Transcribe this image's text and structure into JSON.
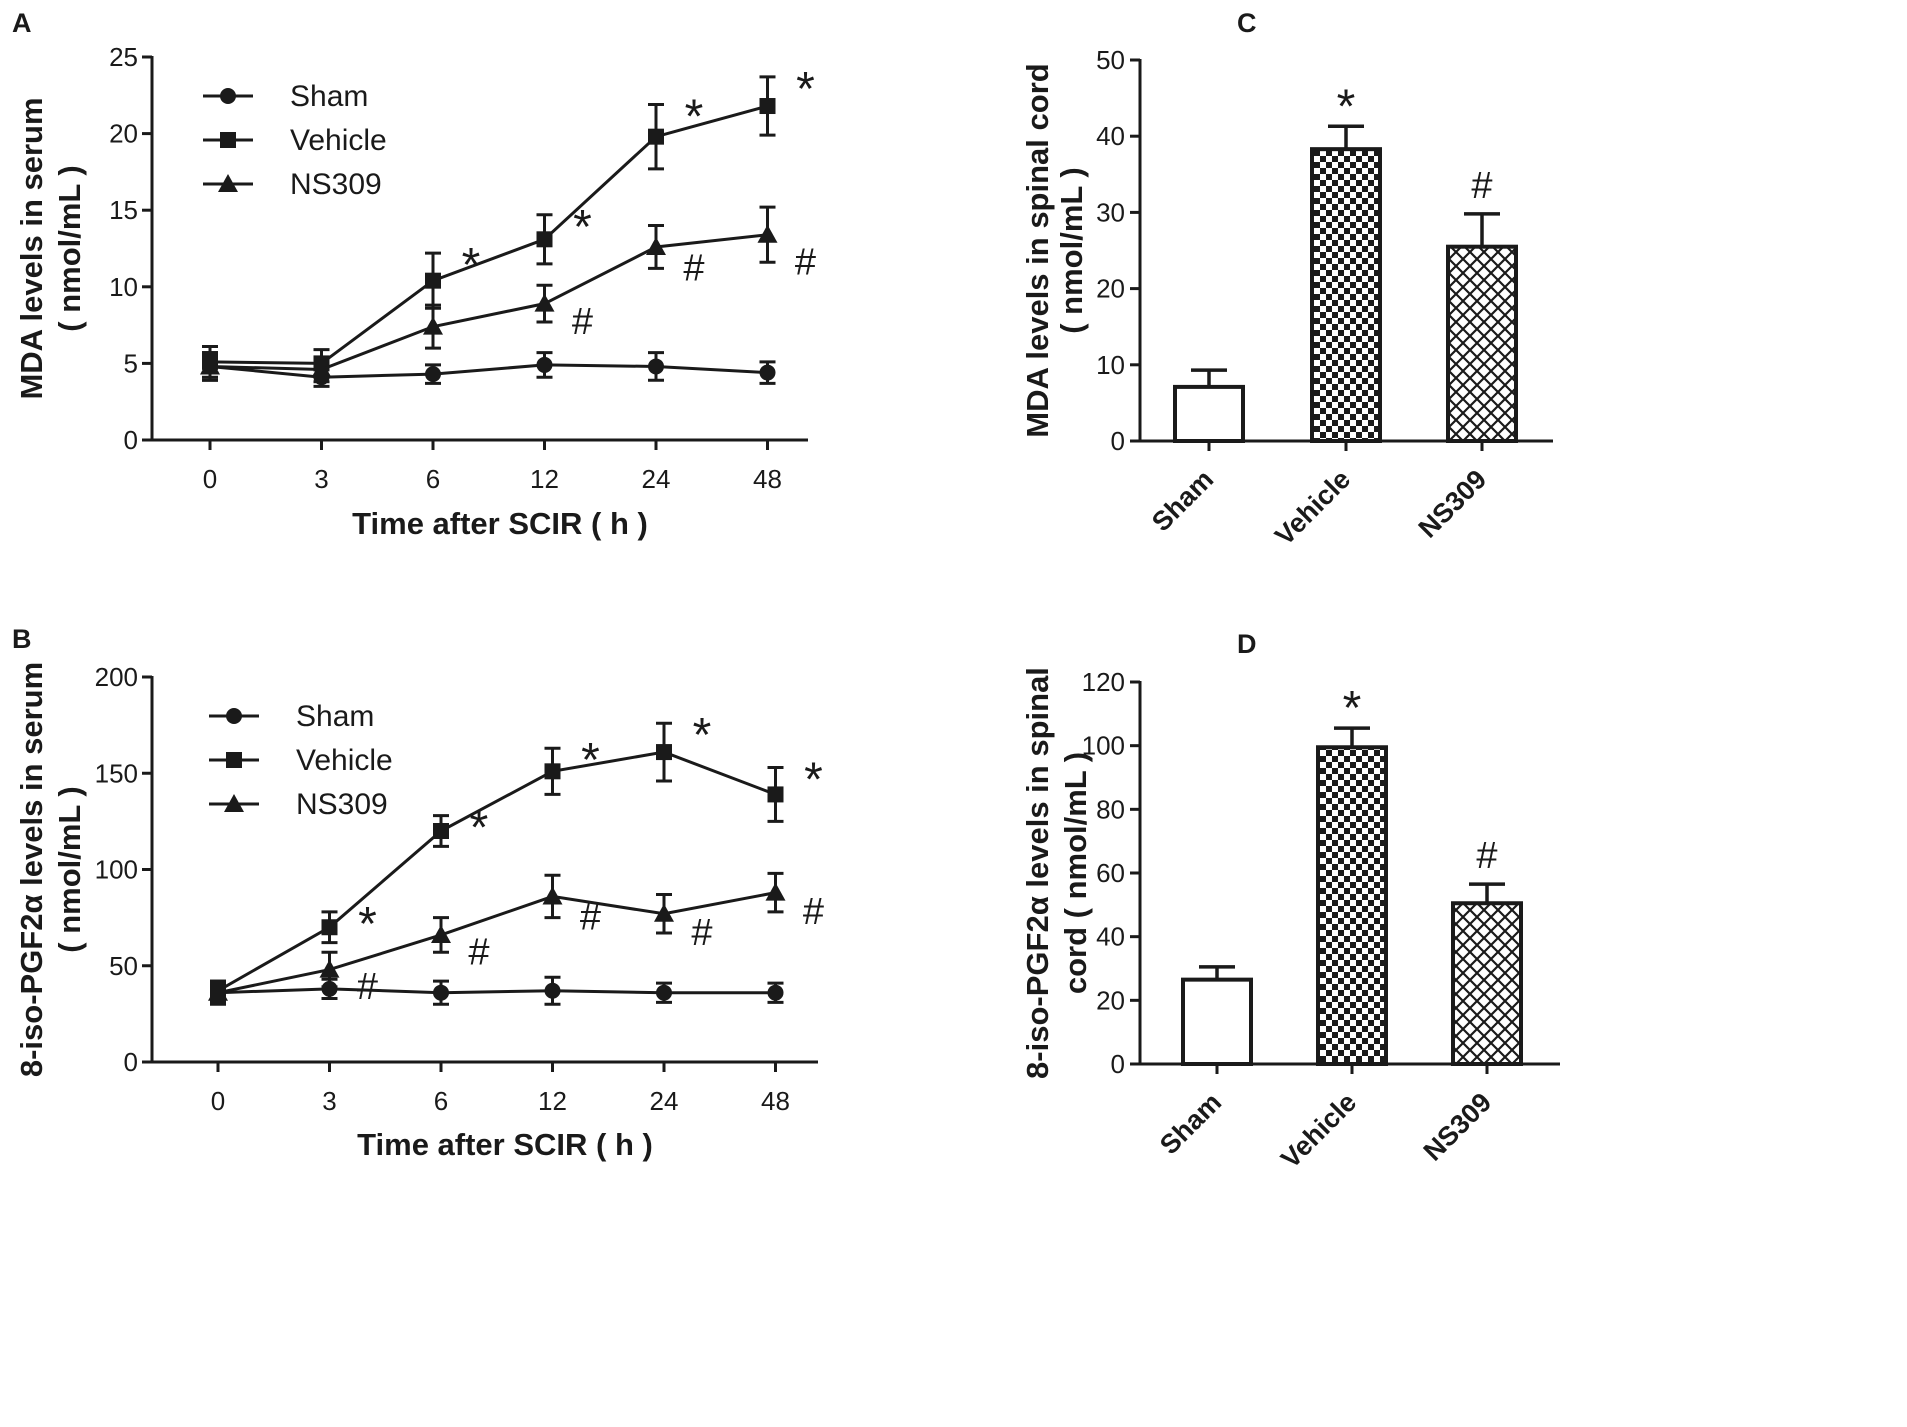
{
  "chart_data": [
    {
      "panel": "A",
      "type": "line",
      "categories": [
        "0",
        "3",
        "6",
        "12",
        "24",
        "48"
      ],
      "xlabel": "Time after SCIR ( h )",
      "ylabel": [
        "MDA levels in serum",
        "( nmol/mL )"
      ],
      "ylim": [
        0,
        25
      ],
      "yticks": [
        0,
        5,
        10,
        15,
        20,
        25
      ],
      "series": [
        {
          "name": "Sham",
          "marker": "circle",
          "values": [
            4.8,
            4.1,
            4.3,
            4.9,
            4.8,
            4.4
          ],
          "errors": [
            0.9,
            0.6,
            0.6,
            0.8,
            0.9,
            0.7
          ]
        },
        {
          "name": "Vehicle",
          "marker": "square",
          "values": [
            5.1,
            5.0,
            10.4,
            13.1,
            19.8,
            21.8
          ],
          "errors": [
            1.0,
            0.9,
            1.8,
            1.6,
            2.1,
            1.9
          ]
        },
        {
          "name": "NS309",
          "marker": "triangle",
          "values": [
            4.8,
            4.6,
            7.4,
            8.9,
            12.6,
            13.4
          ],
          "errors": [
            0.9,
            0.8,
            1.4,
            1.2,
            1.4,
            1.8
          ]
        }
      ],
      "annotations": [
        {
          "text": "*",
          "series": "Vehicle",
          "index": 2
        },
        {
          "text": "*",
          "series": "Vehicle",
          "index": 3
        },
        {
          "text": "*",
          "series": "Vehicle",
          "index": 4
        },
        {
          "text": "*",
          "series": "Vehicle",
          "index": 5
        },
        {
          "text": "#",
          "series": "NS309",
          "index": 3
        },
        {
          "text": "#",
          "series": "NS309",
          "index": 4
        },
        {
          "text": "#",
          "series": "NS309",
          "index": 5
        }
      ]
    },
    {
      "panel": "B",
      "type": "line",
      "categories": [
        "0",
        "3",
        "6",
        "12",
        "24",
        "48"
      ],
      "xlabel": "Time after SCIR ( h )",
      "ylabel": [
        "8-iso-PGF2α levels in serum",
        "( nmol/mL )"
      ],
      "ylim": [
        0,
        200
      ],
      "yticks": [
        0,
        50,
        100,
        150,
        200
      ],
      "series": [
        {
          "name": "Sham",
          "marker": "circle",
          "values": [
            36,
            38,
            36,
            37,
            36,
            36
          ],
          "errors": [
            6,
            5,
            6,
            7,
            5,
            5
          ]
        },
        {
          "name": "Vehicle",
          "marker": "square",
          "values": [
            37,
            70,
            120,
            151,
            161,
            139
          ],
          "errors": [
            5,
            8,
            8,
            12,
            15,
            14
          ]
        },
        {
          "name": "NS309",
          "marker": "triangle",
          "values": [
            36,
            48,
            66,
            86,
            77,
            88
          ],
          "errors": [
            5,
            9,
            9,
            11,
            10,
            10
          ]
        }
      ],
      "annotations": [
        {
          "text": "*",
          "series": "Vehicle",
          "index": 1
        },
        {
          "text": "*",
          "series": "Vehicle",
          "index": 2
        },
        {
          "text": "*",
          "series": "Vehicle",
          "index": 3
        },
        {
          "text": "*",
          "series": "Vehicle",
          "index": 4
        },
        {
          "text": "*",
          "series": "Vehicle",
          "index": 5
        },
        {
          "text": "#",
          "series": "NS309",
          "index": 1
        },
        {
          "text": "#",
          "series": "NS309",
          "index": 2
        },
        {
          "text": "#",
          "series": "NS309",
          "index": 3
        },
        {
          "text": "#",
          "series": "NS309",
          "index": 4
        },
        {
          "text": "#",
          "series": "NS309",
          "index": 5
        }
      ]
    },
    {
      "panel": "C",
      "type": "bar",
      "categories": [
        "Sham",
        "Vehicle",
        "NS309"
      ],
      "patterns": [
        "none",
        "checker",
        "crosshatch"
      ],
      "values": [
        7.1,
        38.3,
        25.5
      ],
      "errors": [
        2.2,
        3.0,
        4.3
      ],
      "ylabel": [
        "MDA levels in spinal cord",
        "( nmol/mL )"
      ],
      "ylim": [
        0,
        50
      ],
      "yticks": [
        0,
        10,
        20,
        30,
        40,
        50
      ],
      "annotations": [
        "",
        "*",
        "#"
      ]
    },
    {
      "panel": "D",
      "type": "bar",
      "categories": [
        "Sham",
        "Vehicle",
        "NS309"
      ],
      "patterns": [
        "none",
        "checker",
        "crosshatch"
      ],
      "values": [
        26.5,
        99.5,
        50.5
      ],
      "errors": [
        4.0,
        6.0,
        6.0
      ],
      "ylabel": [
        "8-iso-PGF2α levels in spinal",
        "cord ( nmol/mL )"
      ],
      "ylim": [
        0,
        120
      ],
      "yticks": [
        0,
        20,
        40,
        60,
        80,
        100,
        120
      ],
      "annotations": [
        "",
        "*",
        "#"
      ]
    }
  ]
}
